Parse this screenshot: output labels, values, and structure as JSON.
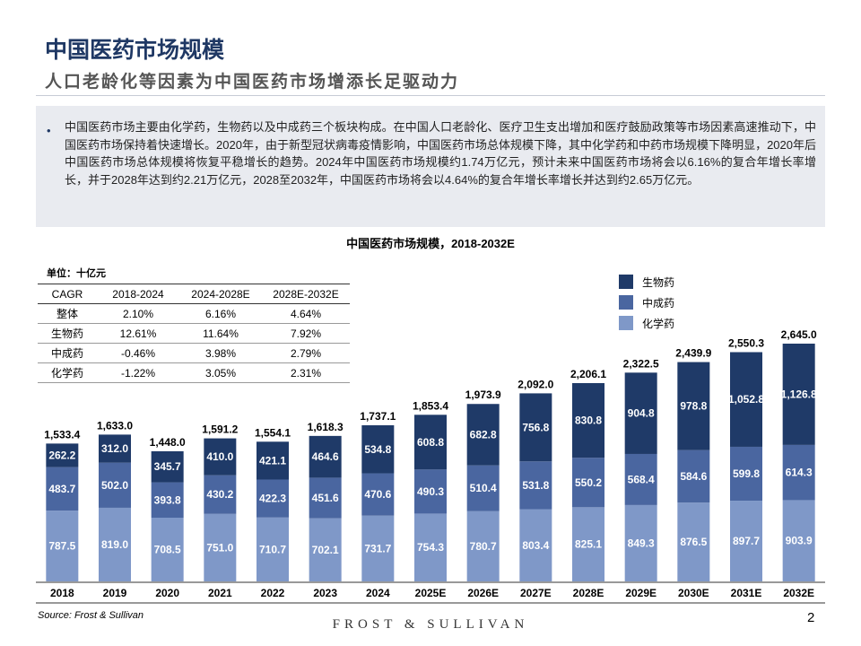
{
  "header": {
    "title": "中国医药市场规模",
    "subtitle": "人口老龄化等因素为中国医药市场增添长足驱动力"
  },
  "summary": "中国医药市场主要由化学药，生物药以及中成药三个板块构成。在中国人口老龄化、医疗卫生支出增加和医疗鼓励政策等市场因素高速推动下，中国医药市场保持着快速增长。2020年，由于新型冠状病毒疫情影响，中国医药市场总体规模下降，其中化学药和中药市场规模下降明显，2020年后中国医药市场总体规模将恢复平稳增长的趋势。2024年中国医药市场规模约1.74万亿元，预计未来中国医药市场将会以6.16%的复合年增长率增长，并于2028年达到约2.21万亿元，2028至2032年，中国医药市场将会以4.64%的复合年增长率增长并达到约2.65万亿元。",
  "unit": "单位：十亿元",
  "table": {
    "header": [
      "CAGR",
      "2018-2024",
      "2024-2028E",
      "2028E-2032E"
    ],
    "rows": [
      [
        "整体",
        "2.10%",
        "6.16%",
        "4.64%"
      ],
      [
        "生物药",
        "12.61%",
        "11.64%",
        "7.92%"
      ],
      [
        "中成药",
        "-0.46%",
        "3.98%",
        "2.79%"
      ],
      [
        "化学药",
        "-1.22%",
        "3.05%",
        "2.31%"
      ]
    ]
  },
  "chart_data": {
    "type": "stacked-bar",
    "title": "中国医药市场规模，2018-2032E",
    "categories": [
      "2018",
      "2019",
      "2020",
      "2021",
      "2022",
      "2023",
      "2024",
      "2025E",
      "2026E",
      "2027E",
      "2028E",
      "2029E",
      "2030E",
      "2031E",
      "2032E"
    ],
    "series": [
      {
        "name": "化学药",
        "color": "#7f98c8",
        "values": [
          787.5,
          819.0,
          708.5,
          751.0,
          710.7,
          702.1,
          731.7,
          754.3,
          780.7,
          803.4,
          825.1,
          849.3,
          876.5,
          897.7,
          903.9
        ],
        "value_labels": [
          "787.5",
          "819.0",
          "708.5",
          "751.0",
          "710.7",
          "702.1",
          "731.7",
          "754.3",
          "780.7",
          "803.4",
          "825.1",
          "849.3",
          "876.5",
          "897.7",
          "903.9"
        ]
      },
      {
        "name": "中成药",
        "color": "#4a66a0",
        "values": [
          483.7,
          502.0,
          393.8,
          430.2,
          422.3,
          451.6,
          470.6,
          490.3,
          510.4,
          531.8,
          550.2,
          568.4,
          584.6,
          599.8,
          614.3
        ],
        "value_labels": [
          "483.7",
          "502.0",
          "393.8",
          "430.2",
          "422.3",
          "451.6",
          "470.6",
          "490.3",
          "510.4",
          "531.8",
          "550.2",
          "568.4",
          "584.6",
          "599.8",
          "614.3"
        ]
      },
      {
        "name": "生物药",
        "color": "#1f3a68",
        "values": [
          262.2,
          312.0,
          345.7,
          410.0,
          421.1,
          464.6,
          534.8,
          608.8,
          682.8,
          756.8,
          830.8,
          904.8,
          978.8,
          1052.8,
          1126.8
        ],
        "value_labels": [
          "262.2",
          "312.0",
          "345.7",
          "410.0",
          "421.1",
          "464.6",
          "534.8",
          "608.8",
          "682.8",
          "756.8",
          "830.8",
          "904.8",
          "978.8",
          "1,052.8",
          "1,126.8"
        ]
      }
    ],
    "totals": [
      1533.4,
      1633.0,
      1448.0,
      1591.2,
      1554.1,
      1618.3,
      1737.1,
      1853.4,
      1973.9,
      2092.0,
      2206.1,
      2322.5,
      2439.9,
      2550.3,
      2645.0
    ],
    "total_labels": [
      "1,533.4",
      "1,633.0",
      "1,448.0",
      "1,591.2",
      "1,554.1",
      "1,618.3",
      "1,737.1",
      "1,853.4",
      "1,973.9",
      "2,092.0",
      "2,206.1",
      "2,322.5",
      "2,439.9",
      "2,550.3",
      "2,645.0"
    ]
  },
  "source": "Source: Frost & Sullivan",
  "brand": "FROST & SULLIVAN",
  "page_number": "2"
}
